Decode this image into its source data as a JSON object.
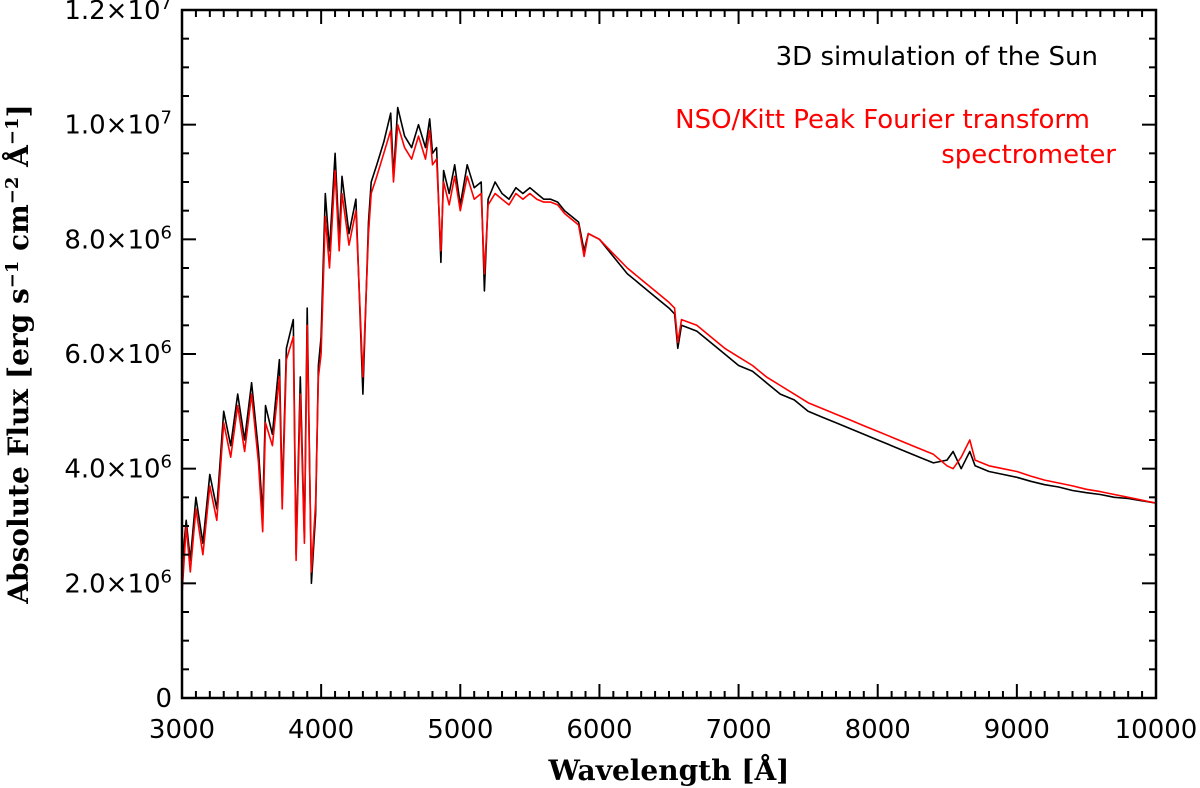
{
  "chart_data": {
    "type": "line",
    "title": "",
    "xlabel": "Wavelength [Å]",
    "ylabel_parts": [
      "Absolute Flux [erg s",
      "−1",
      " cm",
      "−2",
      " Å",
      "−1",
      "]"
    ],
    "xlim": [
      3000,
      10000
    ],
    "ylim": [
      0,
      12000000
    ],
    "x_ticks": [
      {
        "value": 3000,
        "label": "3000"
      },
      {
        "value": 4000,
        "label": "4000"
      },
      {
        "value": 5000,
        "label": "5000"
      },
      {
        "value": 6000,
        "label": "6000"
      },
      {
        "value": 7000,
        "label": "7000"
      },
      {
        "value": 8000,
        "label": "8000"
      },
      {
        "value": 9000,
        "label": "9000"
      },
      {
        "value": 10000,
        "label": "10000"
      }
    ],
    "y_ticks": [
      {
        "value": 0,
        "mantissa": "0",
        "exponent": ""
      },
      {
        "value": 2000000,
        "mantissa": "2.0×10",
        "exponent": "6"
      },
      {
        "value": 4000000,
        "mantissa": "4.0×10",
        "exponent": "6"
      },
      {
        "value": 6000000,
        "mantissa": "6.0×10",
        "exponent": "6"
      },
      {
        "value": 8000000,
        "mantissa": "8.0×10",
        "exponent": "6"
      },
      {
        "value": 10000000,
        "mantissa": "1.0×10",
        "exponent": "7"
      },
      {
        "value": 12000000,
        "mantissa": "1.2×10",
        "exponent": "7"
      }
    ],
    "legend": [
      {
        "lines": [
          "3D simulation of the Sun"
        ],
        "color": "#000000"
      },
      {
        "lines": [
          "NSO/Kitt Peak Fourier transform",
          "spectrometer"
        ],
        "color": "#ff0000"
      }
    ],
    "legend_position": "top-right",
    "series": [
      {
        "name": "3D simulation of the Sun",
        "color": "#000000",
        "x": [
          3000,
          3030,
          3060,
          3100,
          3150,
          3200,
          3250,
          3300,
          3350,
          3400,
          3450,
          3500,
          3550,
          3580,
          3600,
          3650,
          3700,
          3720,
          3750,
          3800,
          3820,
          3850,
          3880,
          3900,
          3930,
          3960,
          3980,
          4000,
          4030,
          4060,
          4100,
          4130,
          4150,
          4200,
          4250,
          4300,
          4340,
          4360,
          4400,
          4450,
          4500,
          4520,
          4550,
          4600,
          4650,
          4700,
          4750,
          4780,
          4800,
          4830,
          4861,
          4880,
          4920,
          4960,
          5000,
          5050,
          5100,
          5150,
          5173,
          5200,
          5250,
          5300,
          5350,
          5400,
          5450,
          5500,
          5550,
          5600,
          5650,
          5700,
          5750,
          5800,
          5850,
          5890,
          5920,
          6000,
          6100,
          6200,
          6300,
          6400,
          6500,
          6540,
          6563,
          6590,
          6700,
          6800,
          6900,
          7000,
          7100,
          7200,
          7300,
          7400,
          7500,
          7600,
          7700,
          7800,
          7900,
          8000,
          8100,
          8200,
          8300,
          8400,
          8498,
          8542,
          8600,
          8662,
          8700,
          8800,
          8900,
          9000,
          9100,
          9200,
          9300,
          9400,
          9500,
          9600,
          9700,
          9800,
          9900,
          10000
        ],
        "y": [
          2300000,
          3100000,
          2400000,
          3500000,
          2700000,
          3900000,
          3300000,
          5000000,
          4400000,
          5300000,
          4500000,
          5500000,
          4300000,
          3200000,
          5100000,
          4600000,
          5900000,
          3500000,
          6100000,
          6600000,
          2500000,
          5600000,
          2800000,
          6800000,
          2000000,
          3200000,
          5800000,
          6300000,
          8800000,
          7800000,
          9500000,
          8000000,
          9100000,
          8100000,
          8700000,
          5300000,
          8300000,
          9000000,
          9300000,
          9700000,
          10200000,
          9100000,
          10300000,
          9800000,
          9600000,
          10000000,
          9600000,
          10100000,
          9500000,
          9600000,
          7600000,
          9200000,
          8800000,
          9300000,
          8600000,
          9300000,
          8900000,
          9000000,
          7100000,
          8700000,
          9000000,
          8800000,
          8700000,
          8900000,
          8800000,
          8900000,
          8800000,
          8700000,
          8700000,
          8650000,
          8500000,
          8400000,
          8300000,
          7800000,
          8100000,
          8000000,
          7700000,
          7400000,
          7200000,
          7000000,
          6800000,
          6700000,
          6100000,
          6500000,
          6400000,
          6200000,
          6000000,
          5800000,
          5700000,
          5500000,
          5300000,
          5200000,
          5000000,
          4900000,
          4800000,
          4700000,
          4600000,
          4500000,
          4400000,
          4300000,
          4200000,
          4100000,
          4150000,
          4300000,
          4000000,
          4300000,
          4050000,
          3950000,
          3900000,
          3850000,
          3780000,
          3720000,
          3680000,
          3620000,
          3580000,
          3550000,
          3500000,
          3480000,
          3440000,
          3400000
        ]
      },
      {
        "name": "NSO/Kitt Peak Fourier transform spectrometer",
        "color": "#ff0000",
        "x": [
          3000,
          3030,
          3060,
          3100,
          3150,
          3200,
          3250,
          3300,
          3350,
          3400,
          3450,
          3500,
          3550,
          3580,
          3600,
          3650,
          3700,
          3720,
          3750,
          3800,
          3820,
          3850,
          3880,
          3900,
          3930,
          3960,
          3980,
          4000,
          4030,
          4060,
          4100,
          4130,
          4150,
          4200,
          4250,
          4300,
          4340,
          4360,
          4400,
          4450,
          4500,
          4520,
          4550,
          4600,
          4650,
          4700,
          4750,
          4780,
          4800,
          4830,
          4861,
          4880,
          4920,
          4960,
          5000,
          5050,
          5100,
          5150,
          5173,
          5200,
          5250,
          5300,
          5350,
          5400,
          5450,
          5500,
          5550,
          5600,
          5650,
          5700,
          5750,
          5800,
          5850,
          5890,
          5920,
          6000,
          6100,
          6200,
          6300,
          6400,
          6500,
          6540,
          6563,
          6590,
          6700,
          6800,
          6900,
          7000,
          7100,
          7200,
          7300,
          7400,
          7500,
          7600,
          7700,
          7800,
          7900,
          8000,
          8100,
          8200,
          8300,
          8400,
          8498,
          8542,
          8600,
          8662,
          8700,
          8800,
          8900,
          9000,
          9100,
          9200,
          9300,
          9400,
          9500,
          9600,
          9700,
          9800,
          9900,
          10000
        ],
        "y": [
          1800000,
          3000000,
          2200000,
          3300000,
          2500000,
          3700000,
          3100000,
          4800000,
          4200000,
          5100000,
          4300000,
          5300000,
          4100000,
          2900000,
          4800000,
          4400000,
          5600000,
          3300000,
          5900000,
          6300000,
          2400000,
          5300000,
          2700000,
          6500000,
          2200000,
          3400000,
          5600000,
          6000000,
          8400000,
          7500000,
          9200000,
          7800000,
          8800000,
          7900000,
          8500000,
          5600000,
          8100000,
          8800000,
          9100000,
          9500000,
          9900000,
          9000000,
          10000000,
          9600000,
          9400000,
          9800000,
          9400000,
          9900000,
          9300000,
          9400000,
          7800000,
          9000000,
          8600000,
          9100000,
          8500000,
          9100000,
          8700000,
          8800000,
          7400000,
          8600000,
          8800000,
          8700000,
          8600000,
          8800000,
          8700000,
          8800000,
          8700000,
          8650000,
          8650000,
          8600000,
          8450000,
          8350000,
          8250000,
          7700000,
          8100000,
          8000000,
          7750000,
          7500000,
          7300000,
          7100000,
          6900000,
          6800000,
          6200000,
          6600000,
          6500000,
          6300000,
          6100000,
          5950000,
          5800000,
          5600000,
          5450000,
          5300000,
          5150000,
          5050000,
          4950000,
          4850000,
          4750000,
          4650000,
          4550000,
          4450000,
          4350000,
          4250000,
          4050000,
          4000000,
          4200000,
          4500000,
          4150000,
          4050000,
          4000000,
          3950000,
          3870000,
          3800000,
          3750000,
          3700000,
          3640000,
          3600000,
          3550000,
          3500000,
          3450000,
          3400000
        ]
      }
    ]
  }
}
